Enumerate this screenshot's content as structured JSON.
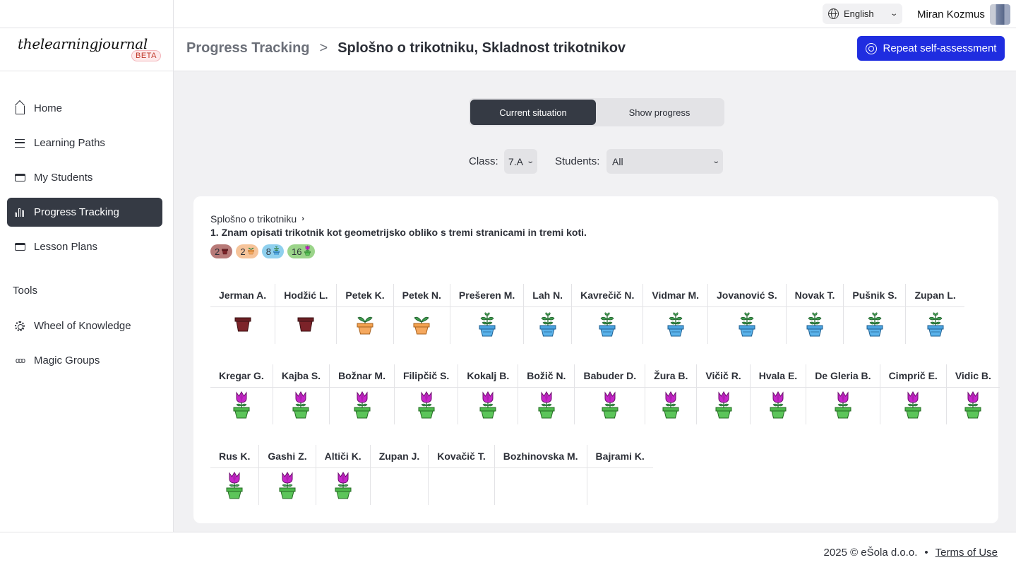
{
  "topbar": {
    "language": "English",
    "user_name": "Miran Kozmus"
  },
  "brand": {
    "logo_text": "thelearningjournal",
    "beta_label": "BETA"
  },
  "header": {
    "breadcrumb_root": "Progress Tracking",
    "breadcrumb_separator": ">",
    "breadcrumb_current": "Splošno o trikotniku, Skladnost trikotnikov",
    "repeat_button": "Repeat self-assessment"
  },
  "sidebar": {
    "items": [
      {
        "label": "Home",
        "icon": "home-icon"
      },
      {
        "label": "Learning Paths",
        "icon": "signpost-icon"
      },
      {
        "label": "My Students",
        "icon": "students-icon"
      },
      {
        "label": "Progress Tracking",
        "icon": "bar-chart-icon",
        "active": true
      },
      {
        "label": "Lesson Plans",
        "icon": "lesson-plans-icon"
      }
    ],
    "tools_label": "Tools",
    "tools": [
      {
        "label": "Wheel of Knowledge",
        "icon": "wheel-icon"
      },
      {
        "label": "Magic Groups",
        "icon": "groups-icon"
      }
    ]
  },
  "view_toggle": {
    "current": "Current situation",
    "progress": "Show progress"
  },
  "filters": {
    "class_label": "Class:",
    "class_value": "7.A",
    "students_label": "Students:",
    "students_value": "All"
  },
  "objective": {
    "topic": "Splošno o trikotniku",
    "statement": "1. Znam opisati trikotnik kot geometrijsko obliko s tremi stranicami in tremi koti.",
    "stage_counts": [
      {
        "count": "2",
        "stage": "pot",
        "color": "#b87a78"
      },
      {
        "count": "2",
        "stage": "sprout",
        "color": "#f6c49a"
      },
      {
        "count": "8",
        "stage": "plant",
        "color": "#8fd0ee"
      },
      {
        "count": "16",
        "stage": "flower",
        "color": "#9bd48a"
      }
    ]
  },
  "students": {
    "row1": [
      {
        "name": "Jerman A.",
        "stage": "pot"
      },
      {
        "name": "Hodžić L.",
        "stage": "pot"
      },
      {
        "name": "Petek K.",
        "stage": "sprout"
      },
      {
        "name": "Petek N.",
        "stage": "sprout"
      },
      {
        "name": "Prešeren M.",
        "stage": "plant"
      },
      {
        "name": "Lah N.",
        "stage": "plant"
      },
      {
        "name": "Kavrečič N.",
        "stage": "plant"
      },
      {
        "name": "Vidmar M.",
        "stage": "plant"
      },
      {
        "name": "Jovanović S.",
        "stage": "plant"
      },
      {
        "name": "Novak T.",
        "stage": "plant"
      },
      {
        "name": "Pušnik S.",
        "stage": "plant"
      },
      {
        "name": "Zupan L.",
        "stage": "plant"
      }
    ],
    "row2": [
      {
        "name": "Kregar G.",
        "stage": "flower"
      },
      {
        "name": "Kajba S.",
        "stage": "flower"
      },
      {
        "name": "Božnar M.",
        "stage": "flower"
      },
      {
        "name": "Filipčič S.",
        "stage": "flower"
      },
      {
        "name": "Kokalj B.",
        "stage": "flower"
      },
      {
        "name": "Božič N.",
        "stage": "flower"
      },
      {
        "name": "Babuder D.",
        "stage": "flower"
      },
      {
        "name": "Žura B.",
        "stage": "flower"
      },
      {
        "name": "Vičič R.",
        "stage": "flower"
      },
      {
        "name": "Hvala E.",
        "stage": "flower"
      },
      {
        "name": "De Gleria B.",
        "stage": "flower"
      },
      {
        "name": "Cimprič E.",
        "stage": "flower"
      },
      {
        "name": "Vidic B.",
        "stage": "flower"
      }
    ],
    "row3": [
      {
        "name": "Rus K.",
        "stage": "flower"
      },
      {
        "name": "Gashi Z.",
        "stage": "flower"
      },
      {
        "name": "Altiči K.",
        "stage": "flower"
      },
      {
        "name": "Zupan J.",
        "stage": "none"
      },
      {
        "name": "Kovačič T.",
        "stage": "none"
      },
      {
        "name": "Bozhinovska M.",
        "stage": "none"
      },
      {
        "name": "Bajrami K.",
        "stage": "none"
      }
    ]
  },
  "footer": {
    "copyright": "2025 © eŠola d.o.o.",
    "dot": "•",
    "terms": "Terms of Use"
  }
}
